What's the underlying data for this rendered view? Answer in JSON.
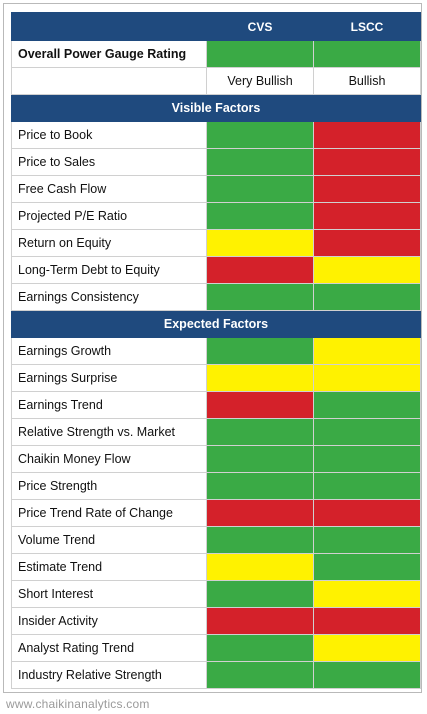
{
  "header": {
    "col1": "CVS",
    "col2": "LSCC"
  },
  "overall": {
    "label": "Overall Power Gauge Rating",
    "col1": "green",
    "col2": "green"
  },
  "ratings": {
    "col1": "Very Bullish",
    "col2": "Bullish"
  },
  "visible_section": {
    "title": "Visible Factors"
  },
  "visible_factors": [
    {
      "label": "Price to Book",
      "col1": "green",
      "col2": "red"
    },
    {
      "label": "Price to Sales",
      "col1": "green",
      "col2": "red"
    },
    {
      "label": "Free Cash Flow",
      "col1": "green",
      "col2": "red"
    },
    {
      "label": "Projected P/E Ratio",
      "col1": "green",
      "col2": "red"
    },
    {
      "label": "Return on Equity",
      "col1": "yellow",
      "col2": "red"
    },
    {
      "label": "Long-Term Debt to Equity",
      "col1": "red",
      "col2": "yellow"
    },
    {
      "label": "Earnings Consistency",
      "col1": "green",
      "col2": "green"
    }
  ],
  "expected_section": {
    "title": "Expected Factors"
  },
  "expected_factors": [
    {
      "label": "Earnings Growth",
      "col1": "green",
      "col2": "yellow"
    },
    {
      "label": "Earnings Surprise",
      "col1": "yellow",
      "col2": "yellow"
    },
    {
      "label": "Earnings Trend",
      "col1": "red",
      "col2": "green"
    },
    {
      "label": "Relative Strength vs. Market",
      "col1": "green",
      "col2": "green"
    },
    {
      "label": "Chaikin Money Flow",
      "col1": "green",
      "col2": "green"
    },
    {
      "label": "Price Strength",
      "col1": "green",
      "col2": "green"
    },
    {
      "label": "Price Trend Rate of Change",
      "col1": "red",
      "col2": "red"
    },
    {
      "label": "Volume Trend",
      "col1": "green",
      "col2": "green"
    },
    {
      "label": "Estimate Trend",
      "col1": "yellow",
      "col2": "green"
    },
    {
      "label": "Short Interest",
      "col1": "green",
      "col2": "yellow"
    },
    {
      "label": "Insider Activity",
      "col1": "red",
      "col2": "red"
    },
    {
      "label": "Analyst Rating Trend",
      "col1": "green",
      "col2": "yellow"
    },
    {
      "label": "Industry Relative Strength",
      "col1": "green",
      "col2": "green"
    }
  ],
  "colors": {
    "green": "#3aaa45",
    "red": "#d4212a",
    "yellow": "#fff200",
    "header_blue": "#1f4a7e"
  },
  "footer": {
    "text": "www.chaikinanalytics.com"
  }
}
